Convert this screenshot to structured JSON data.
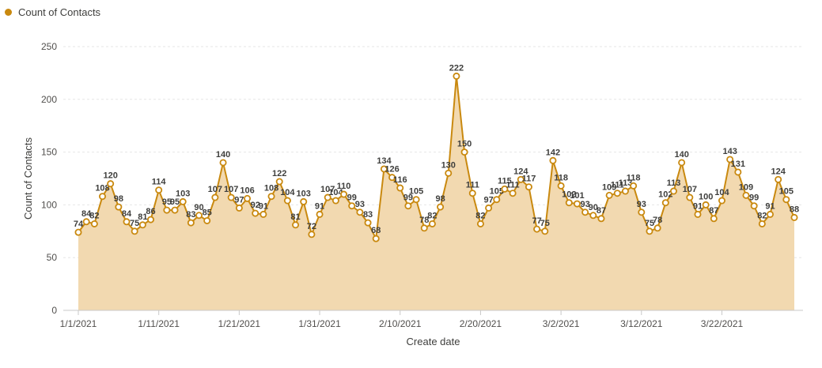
{
  "legend": {
    "label": "Count of Contacts"
  },
  "colors": {
    "line": "#c9890f",
    "area": "#f2d9b0",
    "grid": "#e6e6e6",
    "axis": "#c9c9c9"
  },
  "chart_data": {
    "type": "area",
    "title": "",
    "xlabel": "Create date",
    "ylabel": "Count of Contacts",
    "ylim": [
      0,
      250
    ],
    "yticks": [
      0,
      50,
      100,
      150,
      200,
      250
    ],
    "grid": true,
    "legend_position": "top-left",
    "x_start": "1/1/2021",
    "x_tick_labels": [
      "1/1/2021",
      "1/11/2021",
      "1/21/2021",
      "1/31/2021",
      "2/10/2021",
      "2/20/2021",
      "3/2/2021",
      "3/12/2021",
      "3/22/2021"
    ],
    "series": [
      {
        "name": "Count of Contacts",
        "values": [
          74,
          84,
          82,
          108,
          120,
          98,
          84,
          75,
          81,
          86,
          114,
          95,
          95,
          103,
          83,
          90,
          85,
          107,
          140,
          107,
          97,
          106,
          92,
          91,
          108,
          122,
          104,
          81,
          103,
          72,
          91,
          107,
          104,
          110,
          99,
          93,
          83,
          68,
          134,
          126,
          116,
          99,
          105,
          78,
          82,
          98,
          130,
          222,
          150,
          111,
          82,
          97,
          105,
          115,
          111,
          124,
          117,
          77,
          75,
          142,
          118,
          102,
          101,
          93,
          90,
          87,
          109,
          111,
          113,
          118,
          93,
          75,
          78,
          102,
          113,
          140,
          107,
          91,
          100,
          87,
          104,
          143,
          131,
          109,
          99,
          82,
          91,
          124,
          105,
          88
        ]
      }
    ]
  }
}
